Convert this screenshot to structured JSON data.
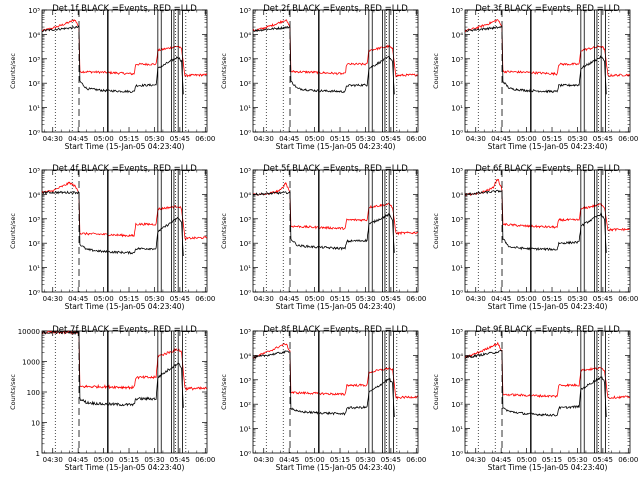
{
  "chart_data": {
    "type": "line",
    "time_ticks": [
      "04:30",
      "04:45",
      "05:00",
      "05:15",
      "05:30",
      "05:45",
      "06:00"
    ],
    "tick_minutes": [
      270,
      285,
      300,
      315,
      330,
      345,
      360
    ],
    "xlim": [
      263.67,
      361
    ],
    "log_y": true,
    "ylabel": "Counts/sec",
    "xlabel": "Start Time (15-Jan-05 04:23:40)",
    "vertical_markers": {
      "dotted": [
        271.5,
        281.5,
        342.5,
        348.5
      ],
      "dashed": [
        285.5
      ],
      "solid": [
        302.5,
        332,
        334,
        340,
        341.5,
        344,
        346.5
      ]
    },
    "panels": [
      {
        "title": "Det 1f BLACK =Events, RED =LLD",
        "ylim_exp": [
          0,
          5
        ],
        "ytick_labels": [
          "10⁰",
          "10¹",
          "10²",
          "10³",
          "10⁴",
          "10⁵"
        ],
        "series": [
          {
            "color": "#ff0000",
            "x": [
              263.67,
              270,
              276,
              280,
              283,
              285.5,
              286,
              300,
              318,
              319,
              331,
              332,
              344,
              346,
              348,
              351,
              361
            ],
            "y": [
              14000,
              18000,
              25000,
              32000,
              40000,
              20000,
              300,
              280,
              240,
              600,
              600,
              2200,
              3300,
              2500,
              200,
              210,
              220
            ]
          },
          {
            "color": "#000000",
            "x": [
              263.67,
              285.5,
              286,
              290,
              300,
              318,
              319,
              331,
              332,
              344,
              346,
              347
            ],
            "y": [
              14000,
              20000,
              120,
              60,
              50,
              45,
              80,
              85,
              400,
              1200,
              800,
              35
            ]
          }
        ]
      },
      {
        "title": "Det 2f BLACK =Events, RED =LLD",
        "ylim_exp": [
          0,
          5
        ],
        "ytick_labels": [
          "10⁰",
          "10¹",
          "10²",
          "10³",
          "10⁴",
          "10⁵"
        ],
        "series": [
          {
            "color": "#ff0000",
            "x": [
              263.67,
              270,
              276,
              280,
              283,
              285.5,
              286,
              300,
              318,
              319,
              331,
              332,
              344,
              346,
              348,
              351,
              361
            ],
            "y": [
              14000,
              18000,
              25000,
              32000,
              40000,
              20000,
              300,
              280,
              240,
              600,
              600,
              2200,
              3300,
              2500,
              200,
              210,
              220
            ]
          },
          {
            "color": "#000000",
            "x": [
              263.67,
              285.5,
              286,
              290,
              300,
              318,
              319,
              331,
              332,
              344,
              346,
              347
            ],
            "y": [
              14000,
              20000,
              120,
              60,
              50,
              45,
              80,
              85,
              400,
              1200,
              800,
              35
            ]
          }
        ]
      },
      {
        "title": "Det 3f BLACK =Events, RED =LLD",
        "ylim_exp": [
          0,
          5
        ],
        "ytick_labels": [
          "10⁰",
          "10¹",
          "10²",
          "10³",
          "10⁴",
          "10⁵"
        ],
        "series": [
          {
            "color": "#ff0000",
            "x": [
              263.67,
              270,
              276,
              280,
              283,
              285.5,
              286,
              300,
              318,
              319,
              331,
              332,
              344,
              346,
              348,
              351,
              361
            ],
            "y": [
              14000,
              18000,
              25000,
              32000,
              40000,
              20000,
              300,
              280,
              240,
              600,
              600,
              2200,
              3300,
              2500,
              200,
              210,
              220
            ]
          },
          {
            "color": "#000000",
            "x": [
              263.67,
              285.5,
              286,
              290,
              300,
              318,
              319,
              331,
              332,
              344,
              346,
              347
            ],
            "y": [
              14000,
              20000,
              120,
              60,
              50,
              45,
              80,
              85,
              400,
              1200,
              800,
              35
            ]
          }
        ]
      },
      {
        "title": "Det 4f BLACK =Events, RED =LLD",
        "ylim_exp": [
          0,
          5
        ],
        "ytick_labels": [
          "10⁰",
          "10¹",
          "10²",
          "10³",
          "10⁴",
          "10⁵"
        ],
        "series": [
          {
            "color": "#ff0000",
            "x": [
              263.67,
              270,
              276,
              280,
              283,
              285.5,
              286,
              300,
              318,
              319,
              331,
              332,
              344,
              346,
              348,
              351,
              361
            ],
            "y": [
              12000,
              14000,
              22000,
              30000,
              22000,
              12000,
              250,
              230,
              200,
              600,
              600,
              2500,
              3300,
              2600,
              150,
              160,
              170
            ]
          },
          {
            "color": "#000000",
            "x": [
              263.67,
              285.5,
              286,
              290,
              300,
              318,
              319,
              331,
              332,
              344,
              346,
              347
            ],
            "y": [
              12000,
              12000,
              90,
              55,
              45,
              40,
              60,
              60,
              300,
              1100,
              700,
              30
            ]
          }
        ]
      },
      {
        "title": "Det 5f BLACK =Events, RED =LLD",
        "ylim_exp": [
          0,
          5
        ],
        "ytick_labels": [
          "10⁰",
          "10¹",
          "10²",
          "10³",
          "10⁴",
          "10⁵"
        ],
        "series": [
          {
            "color": "#ff0000",
            "x": [
              263.67,
              270,
              276,
              280,
              283,
              285.5,
              286,
              300,
              318,
              319,
              331,
              332,
              344,
              346,
              348,
              351,
              361
            ],
            "y": [
              10000,
              10000,
              12000,
              15000,
              30000,
              12000,
              500,
              450,
              400,
              900,
              900,
              3000,
              4000,
              3000,
              250,
              260,
              270
            ]
          },
          {
            "color": "#000000",
            "x": [
              263.67,
              285.5,
              286,
              290,
              300,
              318,
              319,
              331,
              332,
              344,
              346,
              347
            ],
            "y": [
              10000,
              12000,
              150,
              80,
              70,
              60,
              120,
              130,
              600,
              1500,
              900,
              40
            ]
          }
        ]
      },
      {
        "title": "Det 6f BLACK =Events, RED =LLD",
        "ylim_exp": [
          0,
          5
        ],
        "ytick_labels": [
          "10⁰",
          "10¹",
          "10²",
          "10³",
          "10⁴",
          "10⁵"
        ],
        "series": [
          {
            "color": "#ff0000",
            "x": [
              263.67,
              270,
              276,
              280,
              283,
              285.5,
              286,
              300,
              318,
              319,
              331,
              332,
              344,
              346,
              348,
              351,
              361
            ],
            "y": [
              10000,
              10000,
              14000,
              18000,
              45000,
              15000,
              600,
              500,
              450,
              900,
              900,
              2500,
              4000,
              3000,
              350,
              360,
              370
            ]
          },
          {
            "color": "#000000",
            "x": [
              263.67,
              285.5,
              286,
              290,
              300,
              318,
              319,
              331,
              332,
              344,
              346,
              347
            ],
            "y": [
              10000,
              14000,
              150,
              70,
              60,
              55,
              100,
              110,
              500,
              1600,
              900,
              40
            ]
          }
        ]
      },
      {
        "title": "Det 7f BLACK =Events, RED =LLD",
        "ylim_exp": [
          0,
          4
        ],
        "ytick_labels": [
          "1",
          "10",
          "100",
          "1000",
          "10000"
        ],
        "series": [
          {
            "color": "#ff0000",
            "x": [
              263.67,
              270,
              276,
              280,
              283,
              285.5,
              286,
              300,
              318,
              319,
              331,
              332,
              344,
              346,
              348,
              351,
              361
            ],
            "y": [
              9000,
              9000,
              9000,
              9000,
              9000,
              9000,
              150,
              150,
              140,
              300,
              300,
              1500,
              2500,
              2000,
              130,
              130,
              130
            ]
          },
          {
            "color": "#000000",
            "x": [
              263.67,
              285.5,
              286,
              290,
              300,
              318,
              319,
              331,
              332,
              344,
              346,
              347
            ],
            "y": [
              9000,
              9000,
              60,
              45,
              40,
              38,
              60,
              60,
              300,
              900,
              600,
              30
            ]
          }
        ]
      },
      {
        "title": "Det 8f BLACK =Events, RED =LLD",
        "ylim_exp": [
          0,
          5
        ],
        "ytick_labels": [
          "10⁰",
          "10¹",
          "10²",
          "10³",
          "10⁴",
          "10⁵"
        ],
        "series": [
          {
            "color": "#ff0000",
            "x": [
              263.67,
              270,
              276,
              280,
              283,
              285.5,
              286,
              300,
              318,
              319,
              331,
              332,
              344,
              346,
              348,
              351,
              361
            ],
            "y": [
              8000,
              12000,
              18000,
              25000,
              30000,
              15000,
              300,
              280,
              250,
              600,
              600,
              2000,
              3000,
              2500,
              180,
              190,
              200
            ]
          },
          {
            "color": "#000000",
            "x": [
              263.67,
              285.5,
              286,
              290,
              300,
              318,
              319,
              331,
              332,
              344,
              346,
              347
            ],
            "y": [
              8000,
              15000,
              70,
              50,
              45,
              40,
              70,
              75,
              300,
              1100,
              700,
              30
            ]
          }
        ]
      },
      {
        "title": "Det 9f BLACK =Events, RED =LLD",
        "ylim_exp": [
          0,
          5
        ],
        "ytick_labels": [
          "10⁰",
          "10¹",
          "10²",
          "10³",
          "10⁴",
          "10⁵"
        ],
        "series": [
          {
            "color": "#ff0000",
            "x": [
              263.67,
              270,
              276,
              280,
              283,
              285.5,
              286,
              300,
              318,
              319,
              331,
              332,
              344,
              346,
              348,
              351,
              361
            ],
            "y": [
              8000,
              12000,
              18000,
              25000,
              30000,
              15000,
              250,
              230,
              210,
              600,
              600,
              2500,
              3000,
              2500,
              180,
              190,
              200
            ]
          },
          {
            "color": "#000000",
            "x": [
              263.67,
              285.5,
              286,
              290,
              300,
              318,
              319,
              331,
              332,
              344,
              346,
              347
            ],
            "y": [
              8000,
              15000,
              70,
              50,
              40,
              35,
              70,
              80,
              400,
              1300,
              800,
              30
            ]
          }
        ]
      }
    ]
  }
}
